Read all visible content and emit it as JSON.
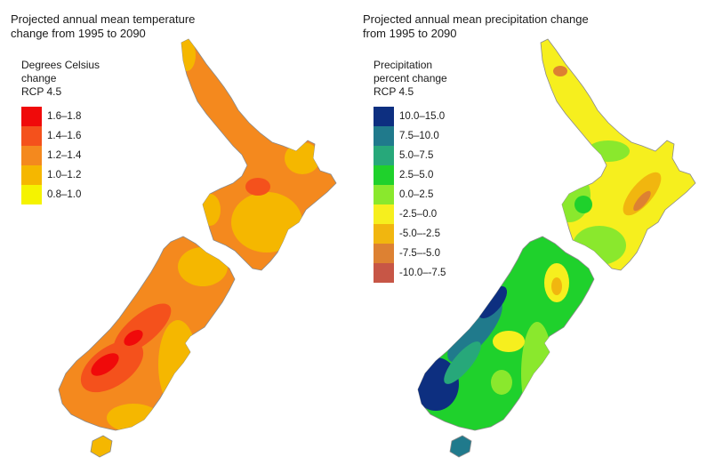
{
  "panels": [
    {
      "title": "Projected annual mean temperature\nchange from 1995 to 2090",
      "legend_title": "Degrees Celsius\nchange\nRCP 4.5",
      "legend": [
        {
          "label": "1.6–1.8",
          "color": "#f00a0a"
        },
        {
          "label": "1.4–1.6",
          "color": "#f4511c"
        },
        {
          "label": "1.2–1.4",
          "color": "#f4891e"
        },
        {
          "label": "1.0–1.2",
          "color": "#f5b700"
        },
        {
          "label": "0.8–1.0",
          "color": "#f5f300"
        }
      ]
    },
    {
      "title": "Projected annual mean precipitation change\nfrom 1995 to 2090",
      "legend_title": "Precipitation\npercent change\nRCP 4.5",
      "legend": [
        {
          "label": "10.0–15.0",
          "color": "#0d2f80"
        },
        {
          "label": "7.5–10.0",
          "color": "#207a8c"
        },
        {
          "label": "5.0–7.5",
          "color": "#27a87a"
        },
        {
          "label": "2.5–5.0",
          "color": "#1fd12c"
        },
        {
          "label": "0.0–2.5",
          "color": "#8ae82d"
        },
        {
          "label": "-2.5–0.0",
          "color": "#f6ef1e"
        },
        {
          "label": "-5.0–-2.5",
          "color": "#f1b60f"
        },
        {
          "label": "-7.5–-5.0",
          "color": "#dd8132"
        },
        {
          "label": "-10.0–-7.5",
          "color": "#c75646"
        }
      ]
    }
  ]
}
